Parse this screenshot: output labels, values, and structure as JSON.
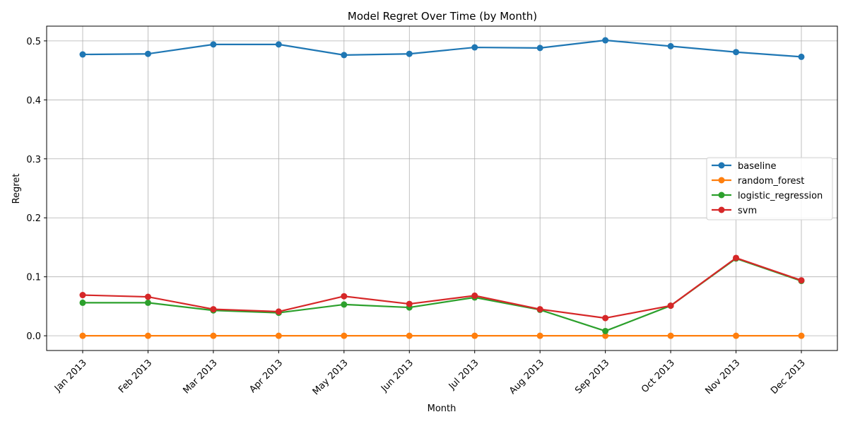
{
  "chart_data": {
    "type": "line",
    "title": "Model Regret Over Time (by Month)",
    "xlabel": "Month",
    "ylabel": "Regret",
    "categories": [
      "Jan 2013",
      "Feb 2013",
      "Mar 2013",
      "Apr 2013",
      "May 2013",
      "Jun 2013",
      "Jul 2013",
      "Aug 2013",
      "Sep 2013",
      "Oct 2013",
      "Nov 2013",
      "Dec 2013"
    ],
    "ylim": [
      -0.025,
      0.525
    ],
    "yticks": [
      "0.0",
      "0.1",
      "0.2",
      "0.3",
      "0.4",
      "0.5"
    ],
    "grid": true,
    "legend_position": "center-right",
    "series": [
      {
        "name": "baseline",
        "color": "#1f77b4",
        "values": [
          0.477,
          0.478,
          0.494,
          0.494,
          0.476,
          0.478,
          0.489,
          0.488,
          0.501,
          0.491,
          0.481,
          0.473
        ]
      },
      {
        "name": "random_forest",
        "color": "#ff7f0e",
        "values": [
          0.0,
          0.0,
          0.0,
          0.0,
          0.0,
          0.0,
          0.0,
          0.0,
          0.0,
          0.0,
          0.0,
          0.0
        ]
      },
      {
        "name": "logistic_regression",
        "color": "#2ca02c",
        "values": [
          0.056,
          0.056,
          0.043,
          0.039,
          0.053,
          0.048,
          0.065,
          0.044,
          0.008,
          0.051,
          0.131,
          0.093
        ]
      },
      {
        "name": "svm",
        "color": "#d62728",
        "values": [
          0.069,
          0.066,
          0.045,
          0.041,
          0.067,
          0.054,
          0.068,
          0.045,
          0.03,
          0.051,
          0.132,
          0.094
        ]
      }
    ]
  }
}
